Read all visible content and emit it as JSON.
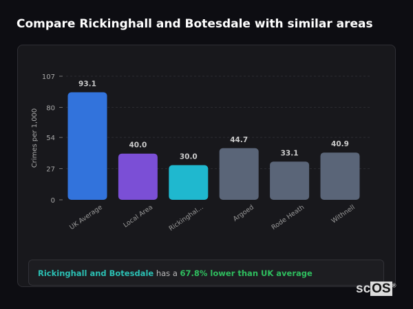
{
  "title": "Compare Rickinghall and Botesdale with similar areas",
  "chart_data": {
    "type": "bar",
    "ylabel": "Crimes per 1,000",
    "ylim": [
      0,
      107
    ],
    "yticks": [
      0,
      27,
      54,
      80,
      107
    ],
    "grid": true,
    "categories": [
      "UK Average",
      "Local Area",
      "Rickinghal...",
      "Argoed",
      "Rode Heath",
      "Withnell"
    ],
    "values": [
      93.1,
      40.0,
      30.0,
      44.7,
      33.1,
      40.9
    ],
    "value_labels": [
      "93.1",
      "40.0",
      "30.0",
      "44.7",
      "33.1",
      "40.9"
    ],
    "colors": [
      "#3273dc",
      "#7b4fd6",
      "#1fb8cf",
      "#5a6578",
      "#5a6578",
      "#5a6578"
    ]
  },
  "summary": {
    "area": "Rickinghall and Botesdale",
    "middle": " has a ",
    "result": "67.8% lower than UK average"
  },
  "logo": {
    "text1": "sc",
    "text2": "OS",
    "mark": "®"
  }
}
